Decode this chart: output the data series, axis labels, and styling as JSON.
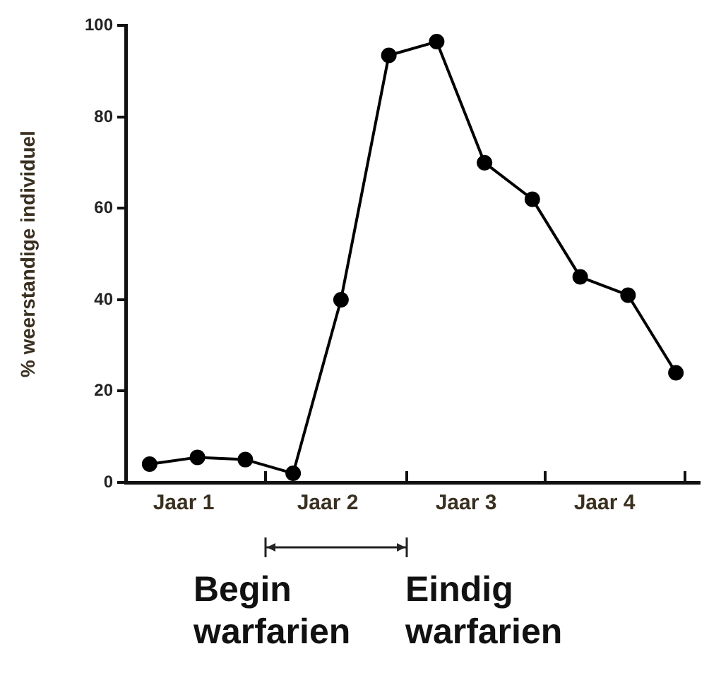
{
  "chart_data": {
    "type": "line",
    "ylabel": "% weerstandige individuel",
    "categories": [
      null,
      null,
      null,
      null,
      null,
      null,
      null,
      null,
      null,
      null,
      null,
      null
    ],
    "series": [
      {
        "color": "#000000",
        "values": [
          4,
          5.5,
          5,
          2,
          40,
          93.5,
          96.5,
          70,
          62,
          45,
          41,
          24
        ]
      }
    ],
    "ylim": [
      0,
      100
    ],
    "yticks": [
      0,
      20,
      40,
      60,
      80,
      100
    ],
    "annotations": [
      "Jaar 1",
      "Jaar 2",
      "Jaar 3",
      "Jaar 4",
      "Begin warfarien",
      "Eindig warfarien"
    ],
    "grid": false,
    "legend": false,
    "marker": "circle",
    "line_style": "solid"
  }
}
